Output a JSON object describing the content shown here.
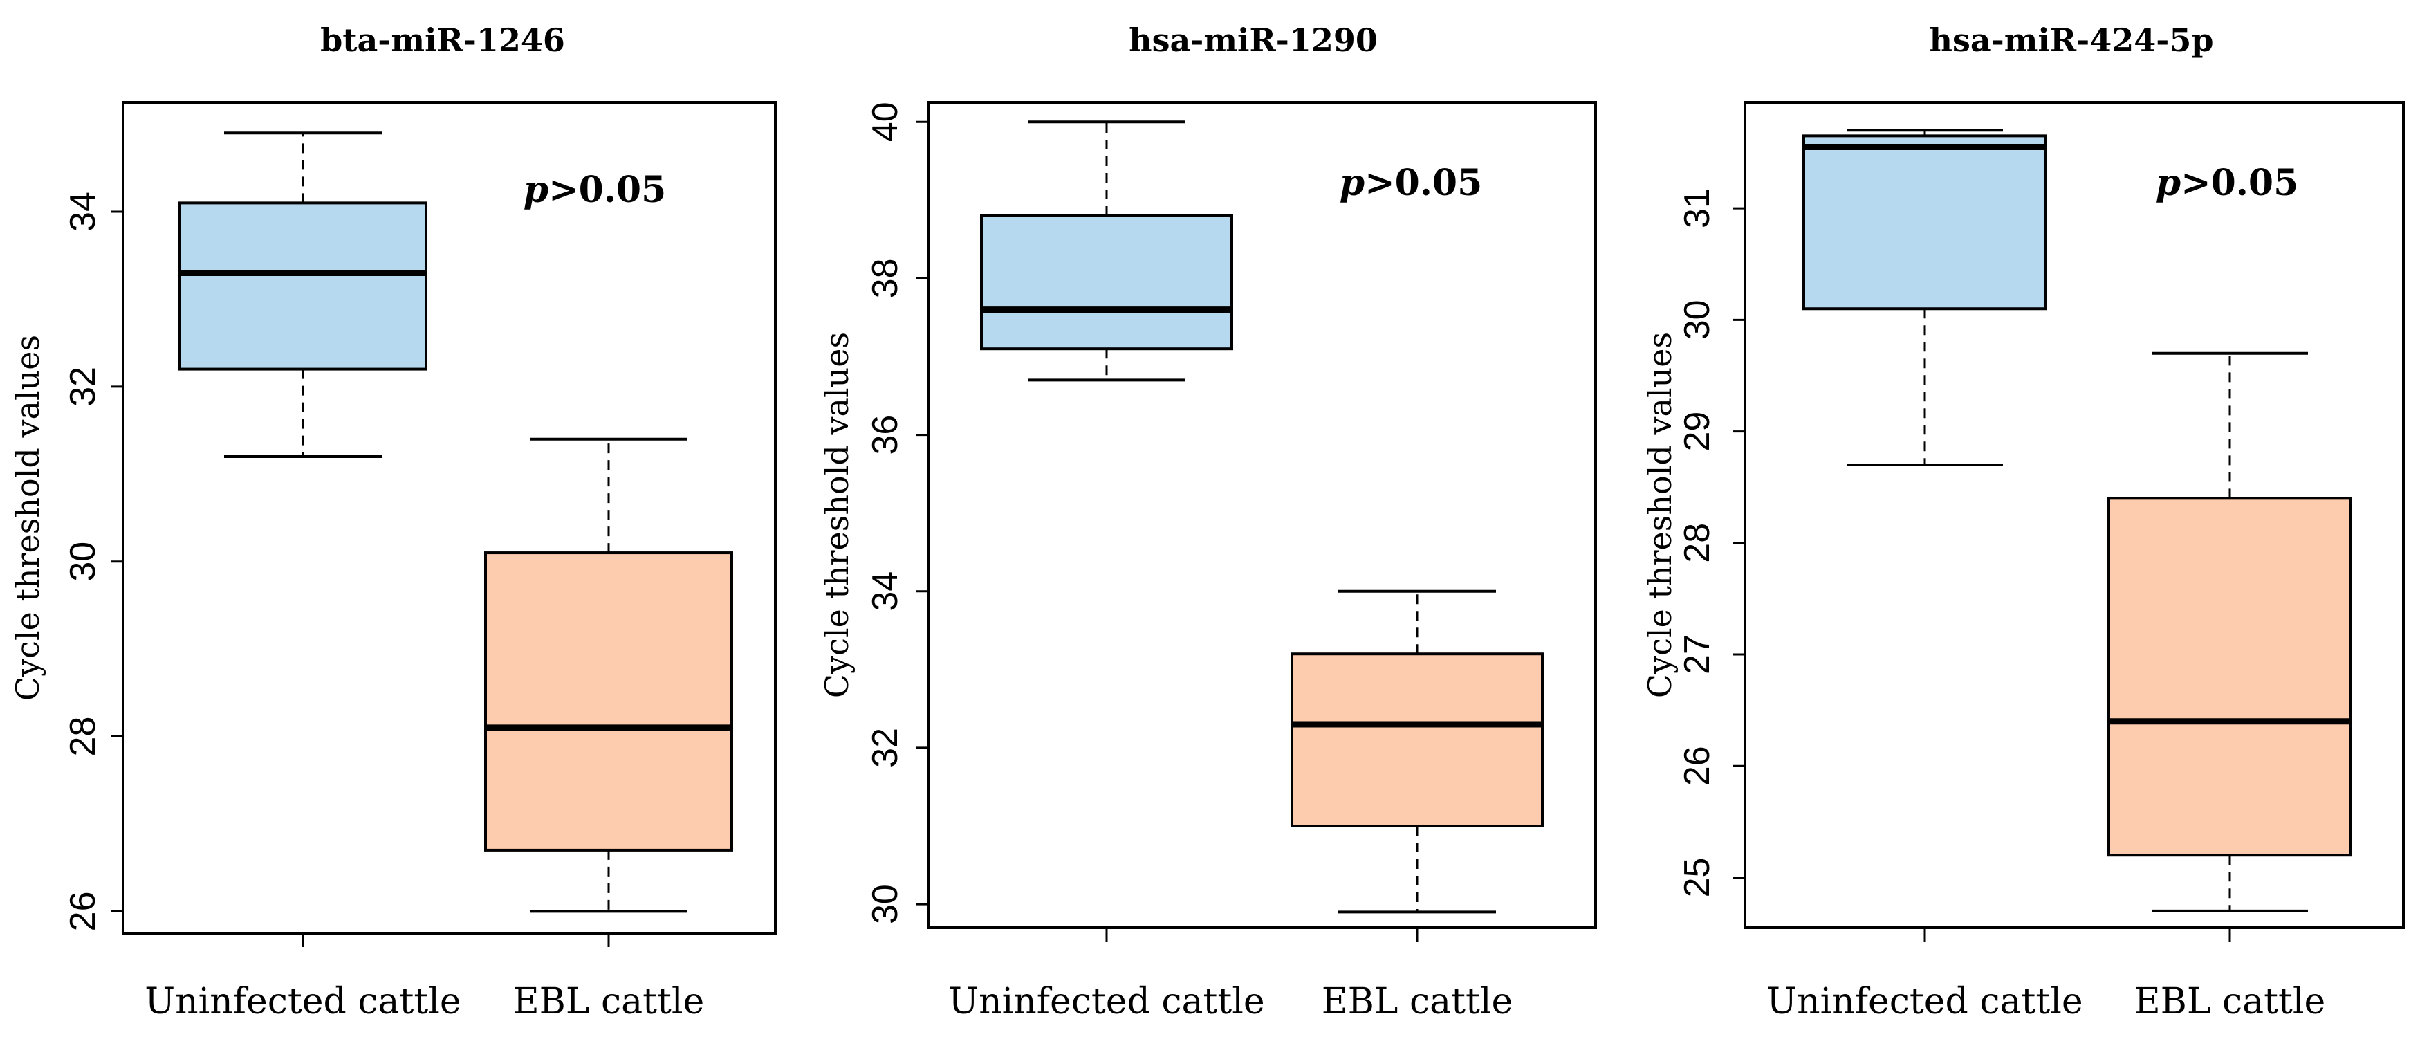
{
  "chart_data": [
    {
      "type": "boxplot",
      "title": "bta-miR-1246",
      "xlabel": "",
      "ylabel": "Cycle threshold values",
      "categories": [
        "Uninfected cattle",
        "EBL cattle"
      ],
      "ylim": [
        25.75,
        35.25
      ],
      "yticks": [
        26,
        28,
        30,
        32,
        34
      ],
      "annotation": {
        "p": "p",
        "text": ">0.05"
      },
      "boxes": [
        {
          "name": "Uninfected cattle",
          "color": "#b6d9f0",
          "whisker_low": 31.2,
          "q1": 32.2,
          "median": 33.3,
          "q3": 34.1,
          "whisker_high": 34.9
        },
        {
          "name": "EBL cattle",
          "color": "#fdcbad",
          "whisker_low": 26.0,
          "q1": 26.7,
          "median": 28.1,
          "q3": 30.1,
          "whisker_high": 31.4
        }
      ]
    },
    {
      "type": "boxplot",
      "title": "hsa-miR-1290",
      "xlabel": "",
      "ylabel": "Cycle threshold values",
      "categories": [
        "Uninfected cattle",
        "EBL cattle"
      ],
      "ylim": [
        29.7,
        40.25
      ],
      "yticks": [
        30,
        32,
        34,
        36,
        38,
        40
      ],
      "annotation": {
        "p": "p",
        "text": ">0.05"
      },
      "boxes": [
        {
          "name": "Uninfected cattle",
          "color": "#b6d9f0",
          "whisker_low": 36.7,
          "q1": 37.1,
          "median": 37.6,
          "q3": 38.8,
          "whisker_high": 40.0
        },
        {
          "name": "EBL cattle",
          "color": "#fdcbad",
          "whisker_low": 29.9,
          "q1": 31.0,
          "median": 32.3,
          "q3": 33.2,
          "whisker_high": 34.0
        }
      ]
    },
    {
      "type": "boxplot",
      "title": "hsa-miR-424-5p",
      "xlabel": "",
      "ylabel": "Cycle threshold values",
      "categories": [
        "Uninfected cattle",
        "EBL cattle"
      ],
      "ylim": [
        24.55,
        31.95
      ],
      "yticks": [
        25,
        26,
        27,
        28,
        29,
        30,
        31
      ],
      "annotation": {
        "p": "p",
        "text": ">0.05"
      },
      "boxes": [
        {
          "name": "Uninfected cattle",
          "color": "#b6d9f0",
          "whisker_low": 28.7,
          "q1": 30.1,
          "median": 31.55,
          "q3": 31.65,
          "whisker_high": 31.7
        },
        {
          "name": "EBL cattle",
          "color": "#fdcbad",
          "whisker_low": 24.7,
          "q1": 25.2,
          "median": 26.4,
          "q3": 28.4,
          "whisker_high": 29.7
        }
      ]
    }
  ]
}
